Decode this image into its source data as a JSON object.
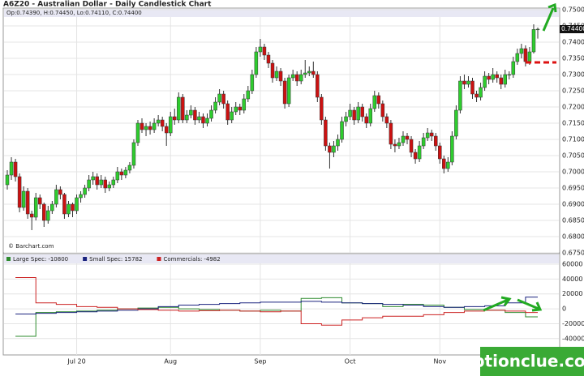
{
  "chart_data": [
    {
      "type": "candlestick",
      "title": "A6Z20 - Australian Dollar - Daily Candlestick Chart",
      "info": "Op:0.74390, H:0.74450, Lo:0.74110, C:0.74400",
      "source": "© Barchart.com",
      "ohlc": [
        [
          0.696,
          0.7005,
          0.6945,
          0.699
        ],
        [
          0.699,
          0.7045,
          0.6975,
          0.703
        ],
        [
          0.703,
          0.704,
          0.697,
          0.6985
        ],
        [
          0.6985,
          0.6995,
          0.6875,
          0.689
        ],
        [
          0.689,
          0.6955,
          0.688,
          0.694
        ],
        [
          0.694,
          0.695,
          0.6855,
          0.687
        ],
        [
          0.687,
          0.688,
          0.682,
          0.686
        ],
        [
          0.686,
          0.6935,
          0.685,
          0.692
        ],
        [
          0.692,
          0.693,
          0.6885,
          0.69
        ],
        [
          0.69,
          0.6905,
          0.683,
          0.685
        ],
        [
          0.685,
          0.6895,
          0.684,
          0.688
        ],
        [
          0.688,
          0.691,
          0.687,
          0.69
        ],
        [
          0.69,
          0.696,
          0.689,
          0.6945
        ],
        [
          0.6945,
          0.6955,
          0.6915,
          0.693
        ],
        [
          0.693,
          0.6935,
          0.6855,
          0.687
        ],
        [
          0.687,
          0.691,
          0.686,
          0.69
        ],
        [
          0.69,
          0.6905,
          0.686,
          0.688
        ],
        [
          0.688,
          0.693,
          0.687,
          0.692
        ],
        [
          0.692,
          0.694,
          0.6905,
          0.693
        ],
        [
          0.693,
          0.696,
          0.692,
          0.695
        ],
        [
          0.695,
          0.699,
          0.694,
          0.6975
        ],
        [
          0.6975,
          0.7,
          0.696,
          0.6985
        ],
        [
          0.6985,
          0.6995,
          0.6945,
          0.696
        ],
        [
          0.696,
          0.699,
          0.695,
          0.6975
        ],
        [
          0.6975,
          0.6985,
          0.6935,
          0.695
        ],
        [
          0.695,
          0.697,
          0.694,
          0.696
        ],
        [
          0.696,
          0.6985,
          0.695,
          0.6975
        ],
        [
          0.6975,
          0.7015,
          0.6965,
          0.7
        ],
        [
          0.7,
          0.701,
          0.6975,
          0.699
        ],
        [
          0.699,
          0.7015,
          0.698,
          0.7005
        ],
        [
          0.7005,
          0.703,
          0.6995,
          0.702
        ],
        [
          0.702,
          0.71,
          0.701,
          0.709
        ],
        [
          0.709,
          0.716,
          0.708,
          0.715
        ],
        [
          0.715,
          0.7165,
          0.712,
          0.713
        ],
        [
          0.713,
          0.715,
          0.711,
          0.714
        ],
        [
          0.714,
          0.7155,
          0.7115,
          0.713
        ],
        [
          0.713,
          0.7165,
          0.712,
          0.715
        ],
        [
          0.715,
          0.7175,
          0.714,
          0.716
        ],
        [
          0.716,
          0.717,
          0.7125,
          0.714
        ],
        [
          0.714,
          0.715,
          0.708,
          0.712
        ],
        [
          0.712,
          0.7185,
          0.711,
          0.717
        ],
        [
          0.717,
          0.7195,
          0.7145,
          0.716
        ],
        [
          0.716,
          0.7245,
          0.715,
          0.723
        ],
        [
          0.723,
          0.724,
          0.715,
          0.716
        ],
        [
          0.716,
          0.719,
          0.715,
          0.7175
        ],
        [
          0.7175,
          0.7205,
          0.7165,
          0.719
        ],
        [
          0.719,
          0.72,
          0.7145,
          0.716
        ],
        [
          0.716,
          0.7185,
          0.715,
          0.717
        ],
        [
          0.717,
          0.718,
          0.7135,
          0.715
        ],
        [
          0.715,
          0.718,
          0.714,
          0.7165
        ],
        [
          0.7165,
          0.7205,
          0.7155,
          0.719
        ],
        [
          0.719,
          0.723,
          0.718,
          0.7215
        ],
        [
          0.7215,
          0.7255,
          0.7205,
          0.724
        ],
        [
          0.724,
          0.725,
          0.7195,
          0.721
        ],
        [
          0.721,
          0.722,
          0.7145,
          0.716
        ],
        [
          0.716,
          0.72,
          0.715,
          0.7185
        ],
        [
          0.7185,
          0.7215,
          0.7175,
          0.72
        ],
        [
          0.72,
          0.721,
          0.7175,
          0.719
        ],
        [
          0.719,
          0.724,
          0.718,
          0.7225
        ],
        [
          0.7225,
          0.7265,
          0.7215,
          0.725
        ],
        [
          0.725,
          0.7315,
          0.724,
          0.73
        ],
        [
          0.73,
          0.7385,
          0.729,
          0.737
        ],
        [
          0.737,
          0.741,
          0.7355,
          0.7385
        ],
        [
          0.7385,
          0.7395,
          0.7345,
          0.736
        ],
        [
          0.736,
          0.737,
          0.732,
          0.7335
        ],
        [
          0.7335,
          0.7345,
          0.7275,
          0.729
        ],
        [
          0.729,
          0.7325,
          0.728,
          0.731
        ],
        [
          0.731,
          0.732,
          0.7265,
          0.728
        ],
        [
          0.728,
          0.729,
          0.7195,
          0.721
        ],
        [
          0.721,
          0.73,
          0.72,
          0.729
        ],
        [
          0.729,
          0.7315,
          0.728,
          0.73
        ],
        [
          0.73,
          0.731,
          0.7265,
          0.728
        ],
        [
          0.728,
          0.7315,
          0.727,
          0.73
        ],
        [
          0.73,
          0.7345,
          0.729,
          0.7305
        ],
        [
          0.7305,
          0.7325,
          0.7295,
          0.731
        ],
        [
          0.731,
          0.734,
          0.729,
          0.73
        ],
        [
          0.73,
          0.731,
          0.7215,
          0.723
        ],
        [
          0.723,
          0.724,
          0.7145,
          0.716
        ],
        [
          0.716,
          0.717,
          0.7065,
          0.708
        ],
        [
          0.708,
          0.709,
          0.701,
          0.706
        ],
        [
          0.706,
          0.7095,
          0.7045,
          0.708
        ],
        [
          0.708,
          0.7115,
          0.7065,
          0.71
        ],
        [
          0.71,
          0.717,
          0.709,
          0.7155
        ],
        [
          0.7155,
          0.7185,
          0.714,
          0.717
        ],
        [
          0.717,
          0.721,
          0.716,
          0.719
        ],
        [
          0.719,
          0.72,
          0.7145,
          0.716
        ],
        [
          0.716,
          0.7215,
          0.715,
          0.72
        ],
        [
          0.72,
          0.721,
          0.7155,
          0.717
        ],
        [
          0.717,
          0.718,
          0.7135,
          0.715
        ],
        [
          0.715,
          0.721,
          0.714,
          0.7195
        ],
        [
          0.7195,
          0.725,
          0.7185,
          0.7235
        ],
        [
          0.7235,
          0.7245,
          0.7195,
          0.721
        ],
        [
          0.721,
          0.722,
          0.7155,
          0.717
        ],
        [
          0.717,
          0.718,
          0.7135,
          0.715
        ],
        [
          0.715,
          0.716,
          0.707,
          0.7085
        ],
        [
          0.7085,
          0.71,
          0.706,
          0.708
        ],
        [
          0.708,
          0.7105,
          0.707,
          0.709
        ],
        [
          0.709,
          0.7125,
          0.708,
          0.711
        ],
        [
          0.711,
          0.712,
          0.7085,
          0.71
        ],
        [
          0.71,
          0.711,
          0.7045,
          0.706
        ],
        [
          0.706,
          0.707,
          0.7025,
          0.704
        ],
        [
          0.704,
          0.7095,
          0.703,
          0.708
        ],
        [
          0.708,
          0.712,
          0.707,
          0.7105
        ],
        [
          0.7105,
          0.7135,
          0.7095,
          0.712
        ],
        [
          0.712,
          0.713,
          0.7095,
          0.711
        ],
        [
          0.711,
          0.712,
          0.7065,
          0.708
        ],
        [
          0.708,
          0.709,
          0.7025,
          0.704
        ],
        [
          0.704,
          0.705,
          0.6995,
          0.701
        ],
        [
          0.701,
          0.7045,
          0.7,
          0.703
        ],
        [
          0.703,
          0.7125,
          0.702,
          0.711
        ],
        [
          0.711,
          0.7205,
          0.71,
          0.719
        ],
        [
          0.719,
          0.7295,
          0.718,
          0.728
        ],
        [
          0.728,
          0.73,
          0.7255,
          0.727
        ],
        [
          0.727,
          0.7295,
          0.726,
          0.728
        ],
        [
          0.728,
          0.729,
          0.7225,
          0.724
        ],
        [
          0.724,
          0.725,
          0.7215,
          0.723
        ],
        [
          0.723,
          0.7275,
          0.722,
          0.726
        ],
        [
          0.726,
          0.731,
          0.725,
          0.7295
        ],
        [
          0.7295,
          0.7305,
          0.727,
          0.7285
        ],
        [
          0.7285,
          0.732,
          0.7275,
          0.73
        ],
        [
          0.73,
          0.731,
          0.7275,
          0.729
        ],
        [
          0.729,
          0.73,
          0.7255,
          0.727
        ],
        [
          0.727,
          0.7315,
          0.726,
          0.73
        ],
        [
          0.73,
          0.731,
          0.7285,
          0.73
        ],
        [
          0.73,
          0.7355,
          0.729,
          0.734
        ],
        [
          0.734,
          0.738,
          0.733,
          0.7365
        ],
        [
          0.7365,
          0.7395,
          0.735,
          0.738
        ],
        [
          0.738,
          0.739,
          0.7325,
          0.734
        ],
        [
          0.734,
          0.7385,
          0.733,
          0.737
        ],
        [
          0.737,
          0.7455,
          0.7365,
          0.7439
        ],
        [
          0.7439,
          0.7445,
          0.7411,
          0.744
        ]
      ],
      "up_color": "#2ecc2e",
      "down_color": "#cc1111",
      "ylim": [
        0.675,
        0.75
      ],
      "yticks": [
        {
          "value": 0.675,
          "label": "0.67500"
        },
        {
          "value": 0.68,
          "label": "0.68000"
        },
        {
          "value": 0.685,
          "label": "0.68500"
        },
        {
          "value": 0.69,
          "label": "0.69000"
        },
        {
          "value": 0.695,
          "label": "0.69500"
        },
        {
          "value": 0.7,
          "label": "0.70000"
        },
        {
          "value": 0.705,
          "label": "0.70500"
        },
        {
          "value": 0.71,
          "label": "0.71000"
        },
        {
          "value": 0.715,
          "label": "0.71500"
        },
        {
          "value": 0.72,
          "label": "0.72000"
        },
        {
          "value": 0.725,
          "label": "0.72500"
        },
        {
          "value": 0.73,
          "label": "0.73000"
        },
        {
          "value": 0.735,
          "label": "0.73500"
        },
        {
          "value": 0.74,
          "label": "0.74000"
        },
        {
          "value": 0.745,
          "label": "0.74500"
        },
        {
          "value": 0.75,
          "label": "0.75000"
        }
      ],
      "last_price": {
        "value": 0.744,
        "label": "0.74400"
      },
      "xlim": [
        0,
        130
      ],
      "xticks": [
        {
          "value": 17,
          "label": "Jul 20"
        },
        {
          "value": 40,
          "label": "Aug"
        },
        {
          "value": 62,
          "label": "Sep"
        },
        {
          "value": 84,
          "label": "Oct"
        },
        {
          "value": 106,
          "label": "Nov"
        }
      ],
      "grid": true
    },
    {
      "type": "step",
      "x": [
        2,
        7,
        12,
        17,
        22,
        27,
        32,
        37,
        42,
        47,
        52,
        57,
        62,
        67,
        72,
        77,
        82,
        87,
        92,
        97,
        102,
        107,
        112,
        117,
        122,
        127
      ],
      "xlim": [
        0,
        130
      ],
      "series": [
        {
          "name": "Large Spec:",
          "color": "#2e8b2e",
          "values": [
            -37000,
            -5000,
            -4000,
            -3000,
            -2000,
            0,
            1000,
            2000,
            0,
            -1000,
            -2000,
            -3000,
            -2000,
            -3000,
            14000,
            15000,
            8000,
            7000,
            3000,
            6000,
            5000,
            2000,
            -1000,
            -2000,
            -5000,
            -10800
          ]
        },
        {
          "name": "Small Spec:",
          "color": "#1a237e",
          "values": [
            -7000,
            -6000,
            -5000,
            -4000,
            -3000,
            -2000,
            0,
            3000,
            5000,
            6000,
            7000,
            8000,
            9000,
            9000,
            10000,
            9000,
            8000,
            7000,
            6000,
            5000,
            3000,
            2000,
            3000,
            4000,
            8000,
            15782
          ]
        },
        {
          "name": "Commercials:",
          "color": "#cc2222",
          "values": [
            42000,
            8000,
            6000,
            3000,
            2000,
            0,
            -1000,
            -2000,
            -3000,
            -2500,
            -2000,
            -3000,
            -4000,
            -3000,
            -20000,
            -22000,
            -15000,
            -12000,
            -10000,
            -10000,
            -8000,
            -5000,
            -3000,
            -2000,
            -3000,
            -4982
          ]
        }
      ],
      "ylim": [
        -62000,
        72000
      ],
      "yticks": [
        60000,
        40000,
        20000,
        0,
        -20000,
        -40000
      ]
    }
  ],
  "watermark": "optionclue.com"
}
